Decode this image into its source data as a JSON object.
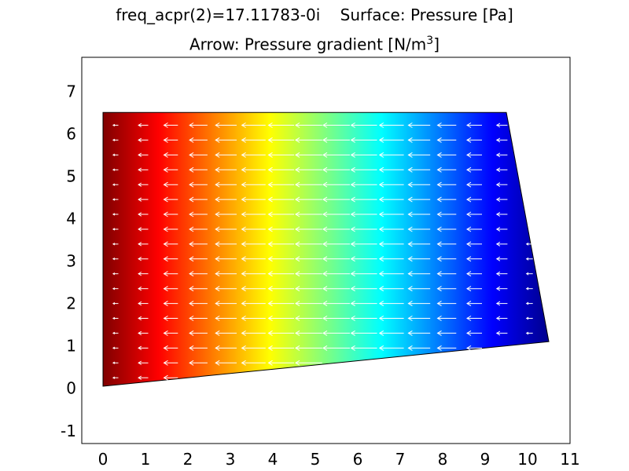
{
  "chart_data": {
    "type": "heatmap",
    "title": "freq_acpr(2)=17.11783-0i    Surface: Pressure [Pa]",
    "subtitle_main": "Arrow: Pressure gradient [N/m",
    "subtitle_sup": "3",
    "subtitle_end": "]",
    "surface_variable": "Pressure [Pa]",
    "arrow_variable": "Pressure gradient [N/m3]",
    "xlim": [
      -0.5,
      11.0
    ],
    "ylim": [
      -1.3,
      7.8
    ],
    "x_ticks": [
      "0",
      "1",
      "2",
      "3",
      "4",
      "5",
      "6",
      "7",
      "8",
      "9",
      "10",
      "11"
    ],
    "x_tick_values": [
      0,
      1,
      2,
      3,
      4,
      5,
      6,
      7,
      8,
      9,
      10,
      11
    ],
    "y_ticks": [
      "-1",
      "0",
      "1",
      "2",
      "3",
      "4",
      "5",
      "6",
      "7"
    ],
    "y_tick_values": [
      -1,
      0,
      1,
      2,
      3,
      4,
      5,
      6,
      7
    ],
    "domain_polygon": [
      [
        0,
        0.05
      ],
      [
        10.5,
        1.1
      ],
      [
        9.5,
        6.5
      ],
      [
        0,
        6.5
      ]
    ],
    "colormap": "jet",
    "colormap_direction": "high at x=0 (dark red), low at x=10.5 (dark blue)",
    "arrow_grid": {
      "x": [
        0.3,
        0.95,
        1.6,
        2.25,
        2.9,
        3.55,
        4.2,
        4.85,
        5.5,
        6.15,
        6.8,
        7.45,
        8.1,
        8.75,
        9.4,
        10.05
      ],
      "y": [
        0.25,
        0.6,
        0.95,
        1.3,
        1.65,
        2.0,
        2.35,
        2.7,
        3.05,
        3.4,
        3.75,
        4.1,
        4.45,
        4.8,
        5.15,
        5.5,
        5.85,
        6.2
      ],
      "direction": "-x",
      "color": "#ffffff"
    },
    "grid": false,
    "legend": "none"
  }
}
